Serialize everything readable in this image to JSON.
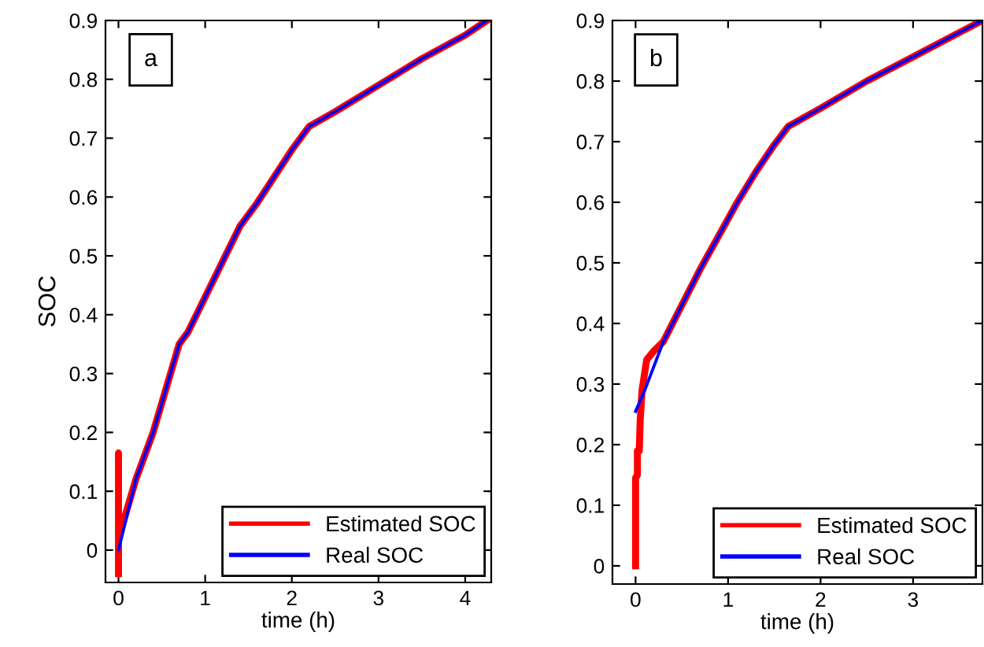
{
  "chart_data": [
    {
      "type": "line",
      "xlabel": "time (h)",
      "ylabel": "SOC",
      "annotations": [
        "a"
      ],
      "xlim": [
        -0.15,
        4.3
      ],
      "ylim": [
        -0.055,
        0.9
      ],
      "xticks": [
        0,
        1,
        2,
        3,
        4
      ],
      "yticks": [
        0,
        0.1,
        0.2,
        0.3,
        0.4,
        0.5,
        0.6,
        0.7,
        0.8,
        0.9
      ],
      "grid": false,
      "legend": "bottom right",
      "line_style": "solid",
      "marker": "none",
      "series": [
        {
          "name": "Estimated SOC",
          "color": "#ff0000",
          "x": [
            0,
            0,
            0,
            0.1,
            0.2,
            0.4,
            0.7,
            0.8,
            1,
            1.2,
            1.4,
            1.6,
            1.8,
            2,
            2.2,
            2.5,
            3,
            3.5,
            4,
            4.25
          ],
          "values": [
            -0.04,
            0.165,
            0.02,
            0.07,
            0.12,
            0.2,
            0.35,
            0.37,
            0.43,
            0.49,
            0.55,
            0.59,
            0.635,
            0.68,
            0.72,
            0.745,
            0.79,
            0.835,
            0.875,
            0.9
          ]
        },
        {
          "name": "Real SOC",
          "color": "#0000ff",
          "x": [
            0,
            0.1,
            0.2,
            0.4,
            0.7,
            0.8,
            1,
            1.2,
            1.4,
            1.6,
            1.8,
            2,
            2.2,
            2.5,
            3,
            3.5,
            4,
            4.25
          ],
          "values": [
            0,
            0.06,
            0.12,
            0.2,
            0.35,
            0.37,
            0.43,
            0.49,
            0.55,
            0.59,
            0.635,
            0.68,
            0.72,
            0.745,
            0.79,
            0.835,
            0.875,
            0.9
          ]
        }
      ]
    },
    {
      "type": "line",
      "xlabel": "time (h)",
      "annotations": [
        "b"
      ],
      "xlim": [
        -0.25,
        3.75
      ],
      "ylim": [
        -0.03,
        0.9
      ],
      "xticks": [
        0,
        1,
        2,
        3
      ],
      "yticks": [
        0,
        0.1,
        0.2,
        0.3,
        0.4,
        0.5,
        0.6,
        0.7,
        0.8,
        0.9
      ],
      "grid": false,
      "legend": "bottom right",
      "line_style": "solid",
      "marker": "none",
      "series": [
        {
          "name": "Estimated SOC",
          "color": "#ff0000",
          "x": [
            0,
            0,
            0.02,
            0.02,
            0.04,
            0.05,
            0.07,
            0.12,
            0.2,
            0.3,
            0.5,
            0.7,
            0.9,
            1.1,
            1.3,
            1.5,
            1.65,
            2,
            2.5,
            3,
            3.5,
            3.75
          ],
          "values": [
            0,
            0.145,
            0.15,
            0.19,
            0.19,
            0.24,
            0.29,
            0.34,
            0.355,
            0.37,
            0.43,
            0.49,
            0.545,
            0.6,
            0.65,
            0.695,
            0.725,
            0.755,
            0.8,
            0.84,
            0.88,
            0.9
          ]
        },
        {
          "name": "Real SOC",
          "color": "#0000ff",
          "x": [
            0,
            0.1,
            0.2,
            0.3,
            0.5,
            0.7,
            0.9,
            1.1,
            1.3,
            1.5,
            1.65,
            2,
            2.5,
            3,
            3.5,
            3.75
          ],
          "values": [
            0.255,
            0.29,
            0.33,
            0.37,
            0.43,
            0.49,
            0.545,
            0.6,
            0.65,
            0.695,
            0.725,
            0.755,
            0.8,
            0.84,
            0.88,
            0.9
          ]
        }
      ]
    }
  ]
}
